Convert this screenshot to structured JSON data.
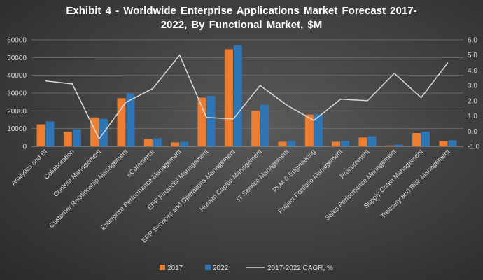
{
  "chart_data": {
    "type": "bar",
    "title_line1": "Exhibit 4 - Worldwide Enterprise Applications Market Forecast 2017-",
    "title_line2": "2022, By Functional Market, $M",
    "categories": [
      "Analytics and BI",
      "Collaboration",
      "Content Management",
      "Customer Relationship Management",
      "eCommerce",
      "Enterprise Performance Management",
      "ERP Financial Management",
      "ERP Services and Operations Management",
      "Human Capital Management",
      "IT Service Management",
      "PLM & Engineering",
      "Project Portfolio Management",
      "Procurement",
      "Sales Performance Management",
      "Supply Chain Management",
      "Treasury and Risk Management"
    ],
    "series": [
      {
        "name": "2017",
        "type": "bar",
        "axis": "left",
        "color": "#ED7D31",
        "values": [
          12400,
          8200,
          16300,
          27100,
          4100,
          2200,
          27400,
          54700,
          20000,
          2600,
          17900,
          2600,
          5000,
          500,
          7500,
          3000
        ]
      },
      {
        "name": "2022",
        "type": "bar",
        "axis": "left",
        "color": "#2E75B6",
        "values": [
          14100,
          9600,
          15500,
          29700,
          4500,
          2600,
          28400,
          57000,
          23400,
          3000,
          18200,
          3000,
          5700,
          900,
          8300,
          3400
        ]
      },
      {
        "name": "2017-2022 CAGR, %",
        "type": "line",
        "axis": "right",
        "color": "#d9d9d9",
        "values": [
          3.3,
          3.1,
          -0.5,
          1.9,
          2.8,
          5.0,
          0.9,
          0.8,
          3.0,
          1.7,
          0.7,
          2.1,
          2.0,
          3.8,
          2.2,
          4.5
        ]
      }
    ],
    "left_axis": {
      "ylim": [
        0,
        60000
      ],
      "ticks": [
        "0",
        "10000",
        "20000",
        "30000",
        "40000",
        "50000",
        "60000"
      ]
    },
    "right_axis": {
      "ylim": [
        -1,
        6
      ],
      "ticks": [
        "-1.0",
        "0.0",
        "1.0",
        "2.0",
        "3.0",
        "4.0",
        "5.0",
        "6.0"
      ]
    },
    "grid": true,
    "legend": "bottom"
  }
}
